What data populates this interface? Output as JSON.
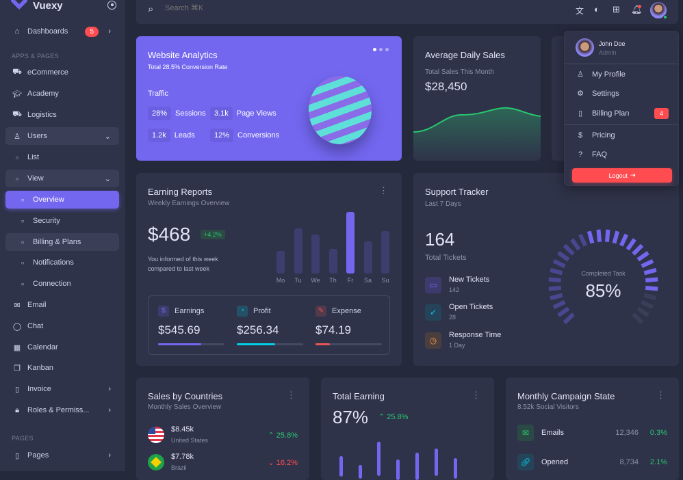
{
  "brand": "Vuexy",
  "search": {
    "placeholder": "Search ⌘K"
  },
  "sidebar": {
    "dashboards": "Dashboards",
    "dash_badge": "5",
    "section1": "APPS & PAGES",
    "items": [
      "eCommerce",
      "Academy",
      "Logistics",
      "Users",
      "List",
      "View",
      "Overview",
      "Security",
      "Billing & Plans",
      "Notifications",
      "Connection",
      "Email",
      "Chat",
      "Calendar",
      "Kanban",
      "Invoice",
      "Roles & Permiss..."
    ],
    "section2": "PAGES",
    "pages": "Pages"
  },
  "analytics": {
    "title": "Website Analytics",
    "subtitle": "Total 28.5% Conversion Rate",
    "traffic": "Traffic",
    "stats": [
      {
        "v": "28%",
        "l": "Sessions"
      },
      {
        "v": "3.1k",
        "l": "Page Views"
      },
      {
        "v": "1.2k",
        "l": "Leads"
      },
      {
        "v": "12%",
        "l": "Conversions"
      }
    ]
  },
  "avg": {
    "title": "Average Daily Sales",
    "subtitle": "Total Sales This Month",
    "value": "$28,450"
  },
  "earning": {
    "title": "Earning Reports",
    "subtitle": "Weekly Earnings Overview",
    "value": "$468",
    "change": "+4.2%",
    "note1": "You informed of this week",
    "note2": "compared to last week",
    "days": [
      "Mo",
      "Tu",
      "We",
      "Th",
      "Fr",
      "Sa",
      "Su"
    ],
    "bars": [
      35,
      70,
      60,
      38,
      95,
      50,
      65
    ],
    "stats": [
      {
        "l": "Earnings",
        "v": "$545.69",
        "p": 65,
        "c": "#7367f0"
      },
      {
        "l": "Profit",
        "v": "$256.34",
        "p": 58,
        "c": "#00cfe8"
      },
      {
        "l": "Expense",
        "v": "$74.19",
        "p": 22,
        "c": "#ea5455"
      }
    ]
  },
  "support": {
    "title": "Support Tracker",
    "subtitle": "Last 7 Days",
    "total": "164",
    "total_label": "Total Tickets",
    "gauge_label": "Completed Task",
    "gauge_value": "85%",
    "completed": 85,
    "items": [
      {
        "t": "New Tickets",
        "v": "142"
      },
      {
        "t": "Open Tickets",
        "v": "28"
      },
      {
        "t": "Response Time",
        "v": "1 Day"
      }
    ]
  },
  "sales": {
    "title": "Sales by Countries",
    "subtitle": "Monthly Sales Overview",
    "rows": [
      {
        "v": "$8.45k",
        "c": "United States",
        "ch": "25.8%"
      },
      {
        "v": "$7.78k",
        "c": "Brazil",
        "ch": "16.2%"
      }
    ]
  },
  "total": {
    "title": "Total Earning",
    "value": "87%",
    "change": "25.8%"
  },
  "campaign": {
    "title": "Monthly Campaign State",
    "subtitle": "8.52k Social Visitors",
    "rows": [
      {
        "l": "Emails",
        "n": "12,346",
        "p": "0.3%"
      },
      {
        "l": "Opened",
        "n": "8,734",
        "p": "2.1%"
      }
    ]
  },
  "profile": {
    "name": "John Doe",
    "role": "Admin",
    "items": [
      "My Profile",
      "Settings",
      "Billing Plan"
    ],
    "billing_badge": "4",
    "items2": [
      "Pricing",
      "FAQ"
    ],
    "logout": "Logout"
  }
}
